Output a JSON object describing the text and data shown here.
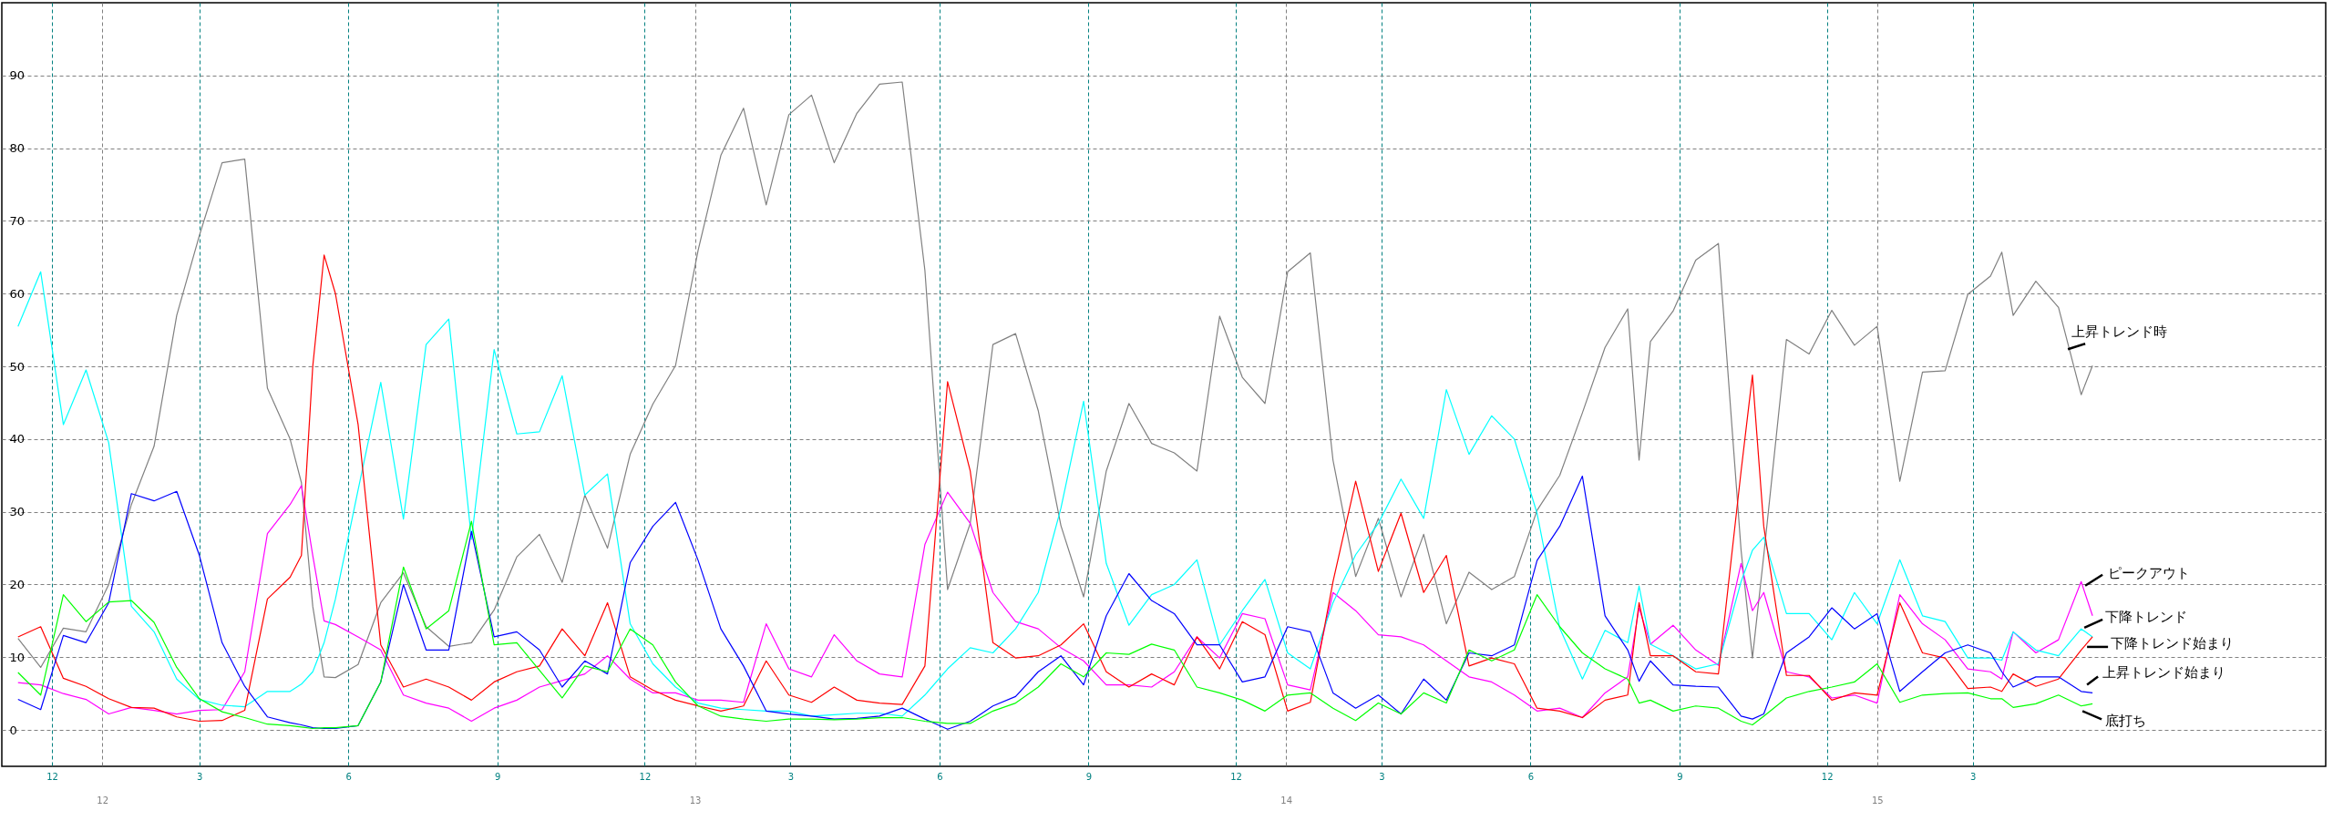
{
  "chart_data": {
    "type": "line",
    "grid": true,
    "xlim": [
      "2011-10-31",
      "2015-10-05"
    ],
    "xticks": [
      {
        "value": "2011-12-01",
        "label": "12"
      },
      {
        "value": "2012-03-01",
        "label": "3"
      },
      {
        "value": "2012-06-01",
        "label": "6"
      },
      {
        "value": "2012-09-01",
        "label": "9"
      },
      {
        "value": "2012-12-01",
        "label": "12"
      },
      {
        "value": "2013-03-01",
        "label": "3"
      },
      {
        "value": "2013-06-01",
        "label": "6"
      },
      {
        "value": "2013-09-01",
        "label": "9"
      },
      {
        "value": "2013-12-01",
        "label": "12"
      },
      {
        "value": "2014-03-01",
        "label": "3"
      },
      {
        "value": "2014-06-01",
        "label": "6"
      },
      {
        "value": "2014-09-01",
        "label": "9"
      },
      {
        "value": "2014-12-01",
        "label": "12"
      },
      {
        "value": "2015-03-01",
        "label": "3"
      }
    ],
    "x2lim": [
      "2011-10-31",
      "2015-10-05"
    ],
    "x2ticks": [
      {
        "value": "2012-01-01",
        "label": "12"
      },
      {
        "value": "2013-01-01",
        "label": "13"
      },
      {
        "value": "2014-01-01",
        "label": "14"
      },
      {
        "value": "2015-01-01",
        "label": "15"
      }
    ],
    "ylim": [
      -5,
      100
    ],
    "yticks": [
      0,
      10,
      20,
      30,
      40,
      50,
      60,
      70,
      80,
      90
    ],
    "x": [
      "2011-11-10",
      "2011-11-24",
      "2011-12-08",
      "2011-12-22",
      "2012-01-05",
      "2012-01-19",
      "2012-02-02",
      "2012-02-16",
      "2012-03-01",
      "2012-03-15",
      "2012-03-29",
      "2012-04-12",
      "2012-04-26",
      "2012-05-03",
      "2012-05-10",
      "2012-05-17",
      "2012-05-24",
      "2012-06-07",
      "2012-06-21",
      "2012-07-05",
      "2012-07-19",
      "2012-08-02",
      "2012-08-16",
      "2012-08-30",
      "2012-09-13",
      "2012-09-27",
      "2012-10-11",
      "2012-10-25",
      "2012-11-08",
      "2012-11-22",
      "2012-12-06",
      "2012-12-20",
      "2013-01-03",
      "2013-01-17",
      "2013-01-31",
      "2013-02-14",
      "2013-02-28",
      "2013-03-14",
      "2013-03-28",
      "2013-04-11",
      "2013-04-25",
      "2013-05-09",
      "2013-05-23",
      "2013-06-06",
      "2013-06-20",
      "2013-07-04",
      "2013-07-18",
      "2013-08-01",
      "2013-08-15",
      "2013-08-29",
      "2013-09-12",
      "2013-09-26",
      "2013-10-10",
      "2013-10-24",
      "2013-11-07",
      "2013-11-21",
      "2013-12-05",
      "2013-12-19",
      "2014-01-02",
      "2014-01-16",
      "2014-01-30",
      "2014-02-13",
      "2014-02-27",
      "2014-03-13",
      "2014-03-27",
      "2014-04-10",
      "2014-04-24",
      "2014-05-08",
      "2014-05-22",
      "2014-06-05",
      "2014-06-19",
      "2014-07-03",
      "2014-07-17",
      "2014-07-31",
      "2014-08-07",
      "2014-08-14",
      "2014-08-28",
      "2014-09-11",
      "2014-09-25",
      "2014-10-09",
      "2014-10-16",
      "2014-10-23",
      "2014-11-06",
      "2014-11-20",
      "2014-12-04",
      "2014-12-18",
      "2015-01-01",
      "2015-01-15",
      "2015-01-29",
      "2015-02-12",
      "2015-02-26",
      "2015-03-12",
      "2015-03-19",
      "2015-03-26",
      "2015-04-09",
      "2015-04-23",
      "2015-05-07",
      "2015-05-14"
    ],
    "series": [
      {
        "name": "上昇トレンド時",
        "color": "#808080",
        "values": [
          12.6,
          8.6,
          14,
          13.5,
          20,
          31,
          39,
          57,
          68,
          78,
          78.5,
          47,
          40,
          34,
          17,
          7.3,
          7.2,
          9,
          17.5,
          21.6,
          14.2,
          11.5,
          12,
          16.5,
          23.8,
          26.9,
          20.3,
          32.3,
          25,
          37.9,
          44.8,
          50.1,
          66,
          79,
          85.5,
          72.2,
          84.6,
          87.3,
          78,
          84.8,
          88.8,
          89.1,
          63.2,
          19.3,
          28.4,
          53,
          54.5,
          43.9,
          28.1,
          18.3,
          35.6,
          44.9,
          39.4,
          38.1,
          35.6,
          56.9,
          48.5,
          44.9,
          63,
          65.6,
          37.1,
          21.1,
          29.1,
          18.3,
          26.9,
          14.6,
          21.7,
          19.3,
          21.1,
          30.2,
          35,
          43.6,
          52.6,
          57.9,
          37.1,
          53.4,
          57.6,
          64.6,
          66.9,
          24.7,
          9.9,
          24,
          53.7,
          51.7,
          57.7,
          52.9,
          55.5,
          34.2,
          49.2,
          49.4,
          59.9,
          62.4,
          65.7,
          57,
          61.7,
          58.1,
          46.1,
          50.1
        ]
      },
      {
        "name": "ピークアウト",
        "color": "#ff00ff",
        "values": [
          6.5,
          6.2,
          5,
          4.2,
          2.2,
          3.1,
          2.7,
          2.2,
          2.7,
          2.8,
          8,
          27,
          31,
          33.6,
          24,
          15,
          14.5,
          12.8,
          11,
          4.8,
          3.7,
          3,
          1.2,
          3,
          4.1,
          5.9,
          6.8,
          7.7,
          10.2,
          7,
          5.1,
          5.1,
          4.1,
          4.1,
          3.8,
          14.6,
          8.4,
          7.3,
          13.1,
          9.5,
          7.7,
          7.3,
          25.5,
          32.7,
          28.4,
          18.9,
          14.9,
          13.9,
          11.3,
          9.5,
          6.2,
          6.2,
          5.9,
          8,
          12.8,
          9.9,
          16,
          15.3,
          6.2,
          5.5,
          18.9,
          16.4,
          13.1,
          12.8,
          11.7,
          9.5,
          7.3,
          6.6,
          4.8,
          2.6,
          3,
          1.7,
          5.1,
          7.3,
          16.8,
          11.8,
          14.4,
          11,
          8.9,
          22.9,
          16.4,
          18.9,
          8,
          7.3,
          4.4,
          4.8,
          3.7,
          18.6,
          14.6,
          12.4,
          8.4,
          8,
          7,
          13.5,
          10.6,
          12.4,
          20.4,
          15.7
        ]
      },
      {
        "name": "下降トレンド",
        "color": "#00ffff",
        "values": [
          55.5,
          63,
          42,
          49.5,
          39.5,
          17,
          13.5,
          7,
          4.2,
          3.4,
          3.2,
          5.3,
          5.3,
          6.3,
          8,
          12,
          18,
          33,
          47.8,
          29,
          53,
          56.5,
          26.2,
          52.3,
          40.7,
          41,
          48.7,
          32.3,
          35.2,
          14.6,
          9.1,
          5.9,
          3.7,
          3,
          2.8,
          2.6,
          2.6,
          1.9,
          2.1,
          2.3,
          2.3,
          1.9,
          4.8,
          8.4,
          11.3,
          10.6,
          13.9,
          18.9,
          30.5,
          45.2,
          22.9,
          14.4,
          18.6,
          20,
          23.4,
          11.7,
          16.4,
          20.7,
          10.6,
          8.4,
          17.5,
          24.1,
          28.4,
          34.5,
          29.1,
          46.8,
          37.9,
          43.2,
          40,
          29.8,
          14,
          7,
          13.7,
          12,
          19.8,
          11.8,
          10.2,
          8.4,
          9.1,
          20.4,
          24.7,
          26.5,
          16,
          16,
          12.4,
          18.9,
          14.6,
          23.4,
          15.7,
          14.9,
          9.9,
          9.9,
          9.6,
          13.5,
          11,
          10.2,
          13.9,
          12.8
        ]
      },
      {
        "name": "下降トレンド始まり",
        "color": "#ff0000",
        "values": [
          12.8,
          14.2,
          7.1,
          6,
          4.3,
          3.1,
          3,
          1.8,
          1.2,
          1.3,
          2.7,
          18,
          21,
          24,
          50,
          65.3,
          60,
          42,
          11.7,
          5.9,
          7,
          5.9,
          4.1,
          6.6,
          8,
          8.8,
          13.9,
          10.2,
          17.5,
          7.3,
          5.5,
          4.1,
          3.3,
          2.6,
          3.3,
          9.5,
          4.8,
          3.8,
          5.9,
          4.1,
          3.7,
          3.5,
          8.8,
          47.9,
          35.6,
          12,
          9.9,
          10.2,
          11.7,
          14.6,
          8,
          5.9,
          7.7,
          6.2,
          12.8,
          8.4,
          14.9,
          13.1,
          2.6,
          3.8,
          20.4,
          34.2,
          21.8,
          29.8,
          18.9,
          24,
          8.8,
          9.9,
          9.1,
          3,
          2.6,
          1.7,
          4.1,
          4.8,
          17.5,
          10.2,
          10.2,
          8,
          7.7,
          35.6,
          48.8,
          28,
          7.5,
          7.5,
          4.1,
          5.1,
          4.8,
          17.5,
          10.6,
          9.9,
          5.7,
          5.9,
          5.3,
          7.7,
          6,
          7,
          11,
          12.8
        ]
      },
      {
        "name": "上昇トレンド始まり",
        "color": "#0000ff",
        "values": [
          4.2,
          2.8,
          13,
          12,
          17.5,
          32.5,
          31.5,
          32.8,
          24,
          12,
          6,
          1.8,
          1,
          0.7,
          0.3,
          0.2,
          0.2,
          0.6,
          6.6,
          20,
          11,
          11,
          27.3,
          12.8,
          13.5,
          11,
          5.9,
          9.5,
          7.7,
          23,
          28,
          31.3,
          23.3,
          13.9,
          8.8,
          2.6,
          2.2,
          1.9,
          1.5,
          1.6,
          1.9,
          3,
          1.5,
          0.1,
          1.2,
          3.3,
          4.6,
          8,
          10.2,
          6.2,
          15.7,
          21.5,
          17.8,
          16,
          11.7,
          11.7,
          6.6,
          7.3,
          14.2,
          13.5,
          5.1,
          3,
          4.8,
          2.2,
          7,
          4.1,
          10.6,
          10.2,
          11.7,
          23.3,
          28,
          34.9,
          15.7,
          11,
          6.7,
          9.5,
          6.2,
          6,
          5.9,
          1.9,
          1.5,
          2.2,
          10.6,
          12.8,
          16.8,
          13.9,
          16,
          5.3,
          8,
          10.6,
          11.7,
          10.6,
          8,
          5.9,
          7.3,
          7.3,
          5.3,
          5.1
        ]
      },
      {
        "name": "底打ち",
        "color": "#00ff00",
        "values": [
          7.9,
          4.8,
          18.6,
          14.9,
          17.6,
          17.8,
          14.8,
          8.6,
          4.3,
          2.5,
          1.7,
          0.8,
          0.6,
          0.4,
          0.2,
          0.3,
          0.3,
          0.6,
          6.6,
          22.4,
          13.9,
          16.4,
          28.7,
          11.7,
          12,
          8.2,
          4.4,
          8.8,
          8,
          13.9,
          11.7,
          6.6,
          3.3,
          1.9,
          1.5,
          1.2,
          1.5,
          1.5,
          1.4,
          1.5,
          1.7,
          1.7,
          1.2,
          0.9,
          0.9,
          2.6,
          3.7,
          5.9,
          9.1,
          7.3,
          10.6,
          10.4,
          11.8,
          11,
          5.9,
          5.1,
          4.1,
          2.6,
          4.8,
          5.1,
          3,
          1.3,
          3.7,
          2.2,
          5.1,
          3.7,
          11,
          9.5,
          11,
          18.6,
          14.2,
          10.6,
          8.4,
          7,
          3.7,
          4.1,
          2.6,
          3.3,
          3,
          1.2,
          0.7,
          1.9,
          4.4,
          5.3,
          5.9,
          6.6,
          9.1,
          3.8,
          4.8,
          5,
          5.1,
          4.3,
          4.3,
          3.1,
          3.6,
          4.8,
          3.3,
          3.6
        ]
      }
    ]
  }
}
